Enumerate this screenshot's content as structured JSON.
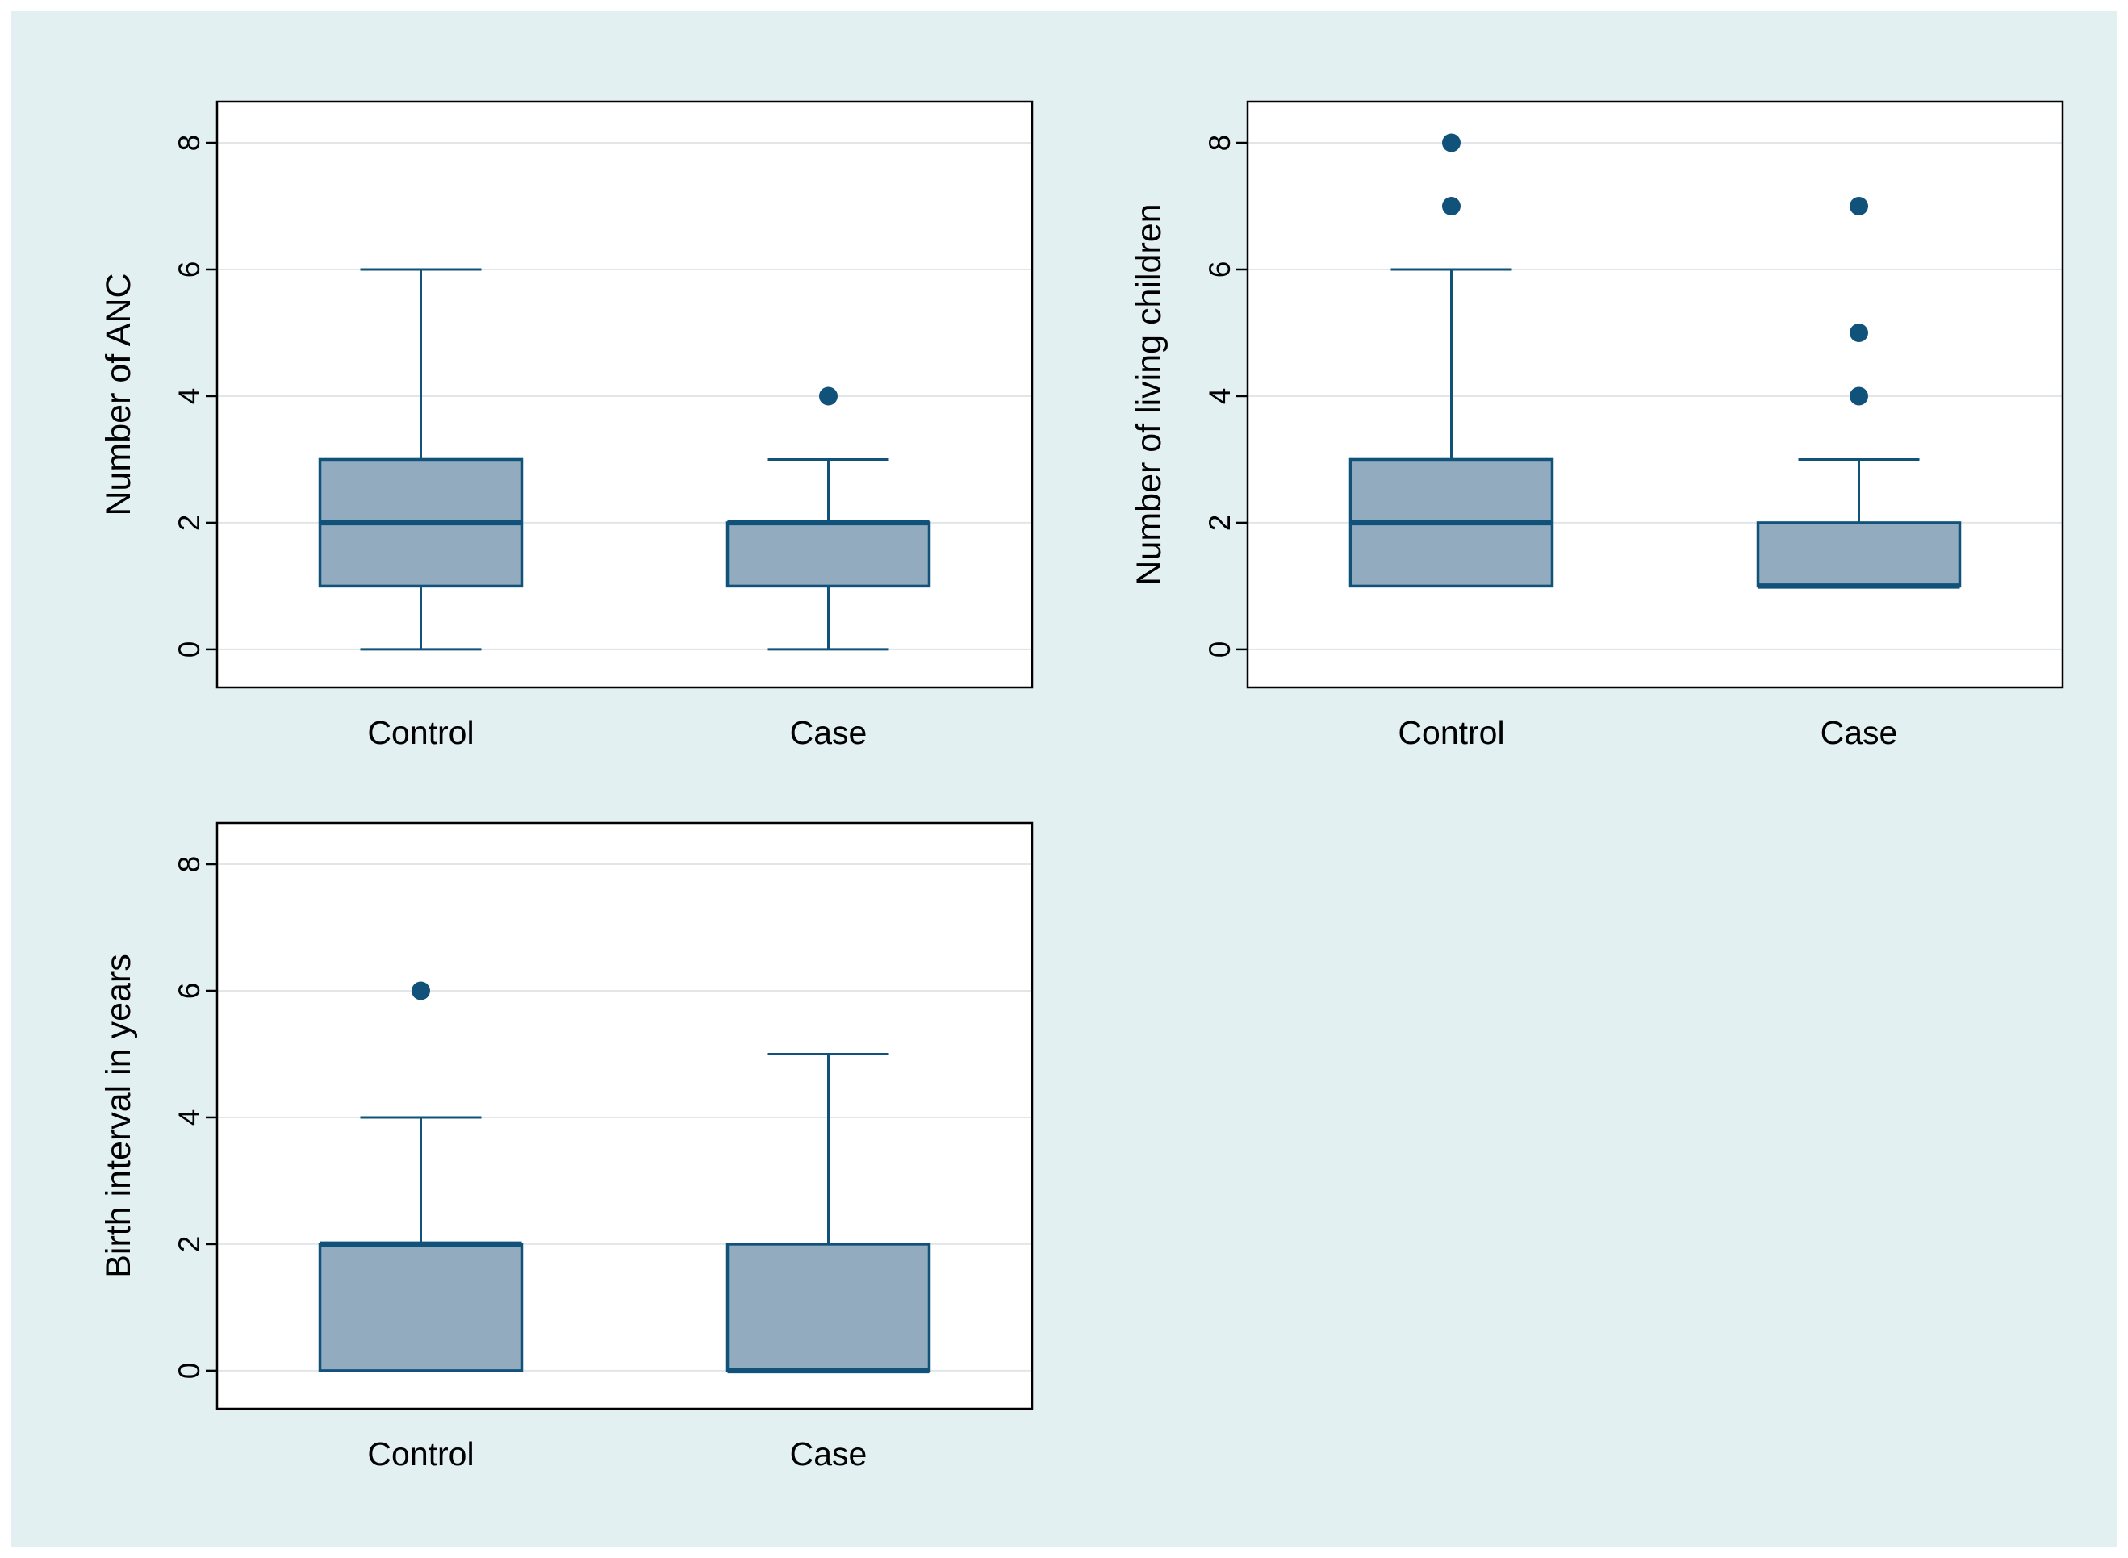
{
  "page": {
    "description": "Three Stata-style box plots comparing Control vs Case groups",
    "canvas_color": "#e2f0f2"
  },
  "style": {
    "plot_bg": "#ffffff",
    "plot_border_color": "#000000",
    "grid_color": "#e3e6e8",
    "line_color": "#11527a",
    "box_fill": "#92abbf",
    "outlier_color": "#11527a",
    "text_color": "#000000"
  },
  "chart_data": [
    {
      "type": "box",
      "id": "number-of-anc",
      "title": "",
      "ylabel": "Number of ANC",
      "xlabel": "",
      "categories": [
        "Control",
        "Case"
      ],
      "yticks": [
        0,
        2,
        4,
        6,
        8
      ],
      "ylim": [
        -0.6,
        8.65
      ],
      "grid": true,
      "boxes": [
        {
          "category": "Control",
          "whislo": 0,
          "q1": 1,
          "med": 2,
          "q3": 3,
          "whishi": 6,
          "outliers": []
        },
        {
          "category": "Case",
          "whislo": 0,
          "q1": 1,
          "med": 2,
          "q3": 2,
          "whishi": 3,
          "outliers": [
            4
          ]
        }
      ]
    },
    {
      "type": "box",
      "id": "number-of-living-children",
      "title": "",
      "ylabel": "Number of living children",
      "xlabel": "",
      "categories": [
        "Control",
        "Case"
      ],
      "yticks": [
        0,
        2,
        4,
        6,
        8
      ],
      "ylim": [
        -0.6,
        8.65
      ],
      "grid": true,
      "boxes": [
        {
          "category": "Control",
          "whislo": 1,
          "q1": 1,
          "med": 2,
          "q3": 3,
          "whishi": 6,
          "outliers": [
            7,
            8
          ]
        },
        {
          "category": "Case",
          "whislo": 1,
          "q1": 1,
          "med": 1,
          "q3": 2,
          "whishi": 3,
          "outliers": [
            4,
            5,
            7
          ]
        }
      ]
    },
    {
      "type": "box",
      "id": "birth-interval-in-years",
      "title": "",
      "ylabel": "Birth interval in years",
      "xlabel": "",
      "categories": [
        "Control",
        "Case"
      ],
      "yticks": [
        0,
        2,
        4,
        6,
        8
      ],
      "ylim": [
        -0.6,
        8.65
      ],
      "grid": true,
      "boxes": [
        {
          "category": "Control",
          "whislo": 0,
          "q1": 0,
          "med": 2,
          "q3": 2,
          "whishi": 4,
          "outliers": [
            6
          ]
        },
        {
          "category": "Case",
          "whislo": 0,
          "q1": 0,
          "med": 0,
          "q3": 2,
          "whishi": 5,
          "outliers": []
        }
      ]
    }
  ]
}
